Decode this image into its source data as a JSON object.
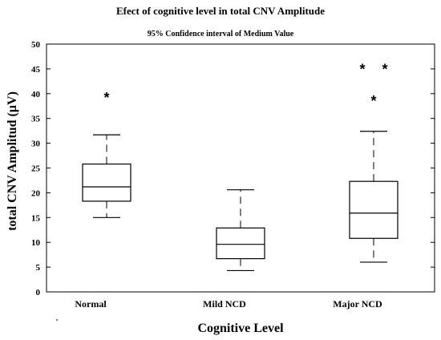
{
  "chart_data": {
    "type": "box",
    "title": "Efect of cognitive level in total CNV Amplitude",
    "subtitle": "95% Confidence interval of Medium Value",
    "xlabel": "Cognitive Level",
    "ylabel": "total CNV Amplitud (µV)",
    "ylim": [
      0,
      50
    ],
    "yticks": [
      "0",
      "5",
      "10",
      "15",
      "20",
      "25",
      "30",
      "35",
      "40",
      "45",
      "50"
    ],
    "categories": [
      "Normal",
      "Mild NCD",
      "Major NCD"
    ],
    "boxes": [
      {
        "category": "Normal",
        "whisker_low": 15,
        "q1": 18.3,
        "median": 21.2,
        "q3": 25.8,
        "whisker_high": 31.7,
        "outliers": [
          39.5
        ]
      },
      {
        "category": "Mild NCD",
        "whisker_low": 4.3,
        "q1": 6.7,
        "median": 9.6,
        "q3": 12.9,
        "whisker_high": 20.6,
        "outliers": []
      },
      {
        "category": "Major NCD",
        "whisker_low": 6,
        "q1": 10.8,
        "median": 15.9,
        "q3": 22.3,
        "whisker_high": 32.4,
        "outliers": [
          38.8,
          45.2,
          45.2
        ]
      }
    ],
    "grid": false,
    "legend": "none"
  }
}
